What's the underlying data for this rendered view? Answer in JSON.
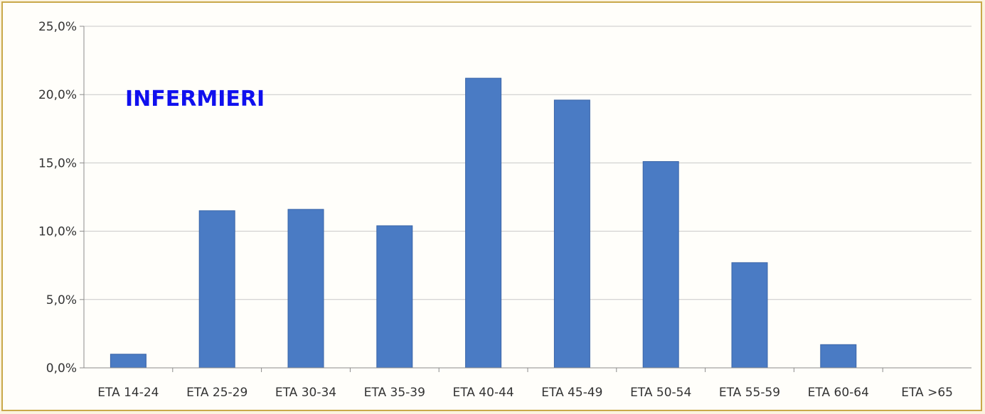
{
  "chart_data": {
    "type": "bar",
    "title": "INFERMIERI",
    "categories": [
      "ETA 14-24",
      "ETA 25-29",
      "ETA 30-34",
      "ETA 35-39",
      "ETA 40-44",
      "ETA 45-49",
      "ETA 50-54",
      "ETA 55-59",
      "ETA 60-64",
      "ETA >65"
    ],
    "values": [
      1.0,
      11.5,
      11.6,
      10.4,
      21.2,
      19.6,
      15.1,
      7.7,
      1.7,
      0.0
    ],
    "ylim": [
      0,
      25
    ],
    "yticks": [
      0,
      5,
      10,
      15,
      20,
      25
    ],
    "ytick_labels": [
      "0,0%",
      "5,0%",
      "10,0%",
      "15,0%",
      "20,0%",
      "25,0%"
    ],
    "xlabel": "",
    "ylabel": "",
    "grid": true,
    "legend": "none",
    "colors": {
      "bar": "#4a7bc4",
      "bar_edge": "#3a65a8",
      "title": "#1010ee",
      "grid": "#c8c8c8",
      "axis": "#8c8c8c",
      "frame": "#c9a84a"
    }
  }
}
